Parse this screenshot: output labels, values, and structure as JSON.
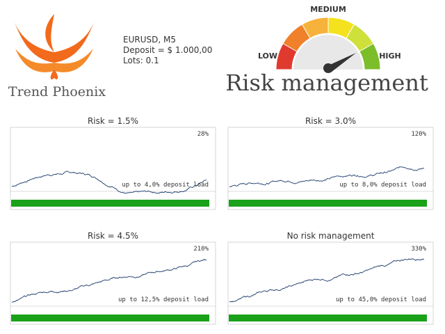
{
  "header": {
    "brand": "Trend Phoenix",
    "symbol": "EURUSD, M5",
    "deposit": "Deposit = $ 1.000,00",
    "lots": "Lots: 0.1",
    "title": "Risk management"
  },
  "gauge": {
    "low": "LOW",
    "medium": "MEDIUM",
    "high": "HIGH"
  },
  "panels": [
    {
      "title": "Risk = 1.5%",
      "profit": "28%",
      "load": "up to 4,0% deposit load"
    },
    {
      "title": "Risk = 3.0%",
      "profit": "120%",
      "load": "up to 8,0% deposit load"
    },
    {
      "title": "Risk = 4.5%",
      "profit": "210%",
      "load": "up to 12,5% deposit load"
    },
    {
      "title": "No risk management",
      "profit": "330%",
      "load": "up to 45,0% deposit load"
    }
  ]
}
